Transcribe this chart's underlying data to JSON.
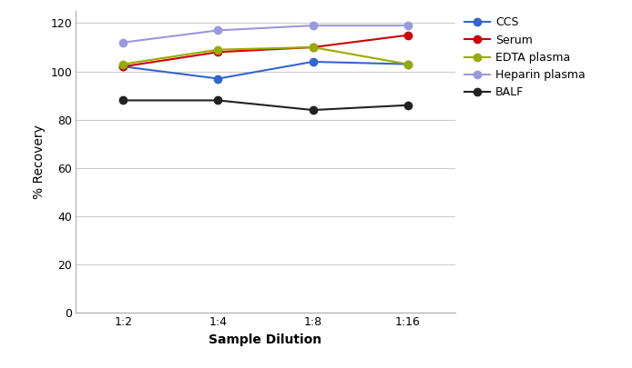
{
  "x_labels": [
    "1:2",
    "1:4",
    "1:8",
    "1:16"
  ],
  "x_positions": [
    0,
    1,
    2,
    3
  ],
  "series": [
    {
      "label": "CCS",
      "color": "#3366cc",
      "marker": "o",
      "values": [
        102,
        97,
        104,
        103
      ]
    },
    {
      "label": "Serum",
      "color": "#cc0000",
      "marker": "o",
      "values": [
        102,
        108,
        110,
        115
      ]
    },
    {
      "label": "EDTA plasma",
      "color": "#99aa00",
      "marker": "o",
      "values": [
        103,
        109,
        110,
        103
      ]
    },
    {
      "label": "Heparin plasma",
      "color": "#9999dd",
      "marker": "o",
      "values": [
        112,
        117,
        119,
        119
      ]
    },
    {
      "label": "BALF",
      "color": "#222222",
      "marker": "o",
      "values": [
        88,
        88,
        84,
        86
      ]
    }
  ],
  "xlabel": "Sample Dilution",
  "ylabel": "% Recovery",
  "ylim": [
    0,
    125
  ],
  "yticks": [
    0,
    20,
    40,
    60,
    80,
    100,
    120
  ],
  "background_color": "#ffffff",
  "grid_color": "#cccccc",
  "axis_fontsize": 10,
  "tick_fontsize": 9,
  "legend_fontsize": 9,
  "line_width": 1.5,
  "marker_size": 6
}
